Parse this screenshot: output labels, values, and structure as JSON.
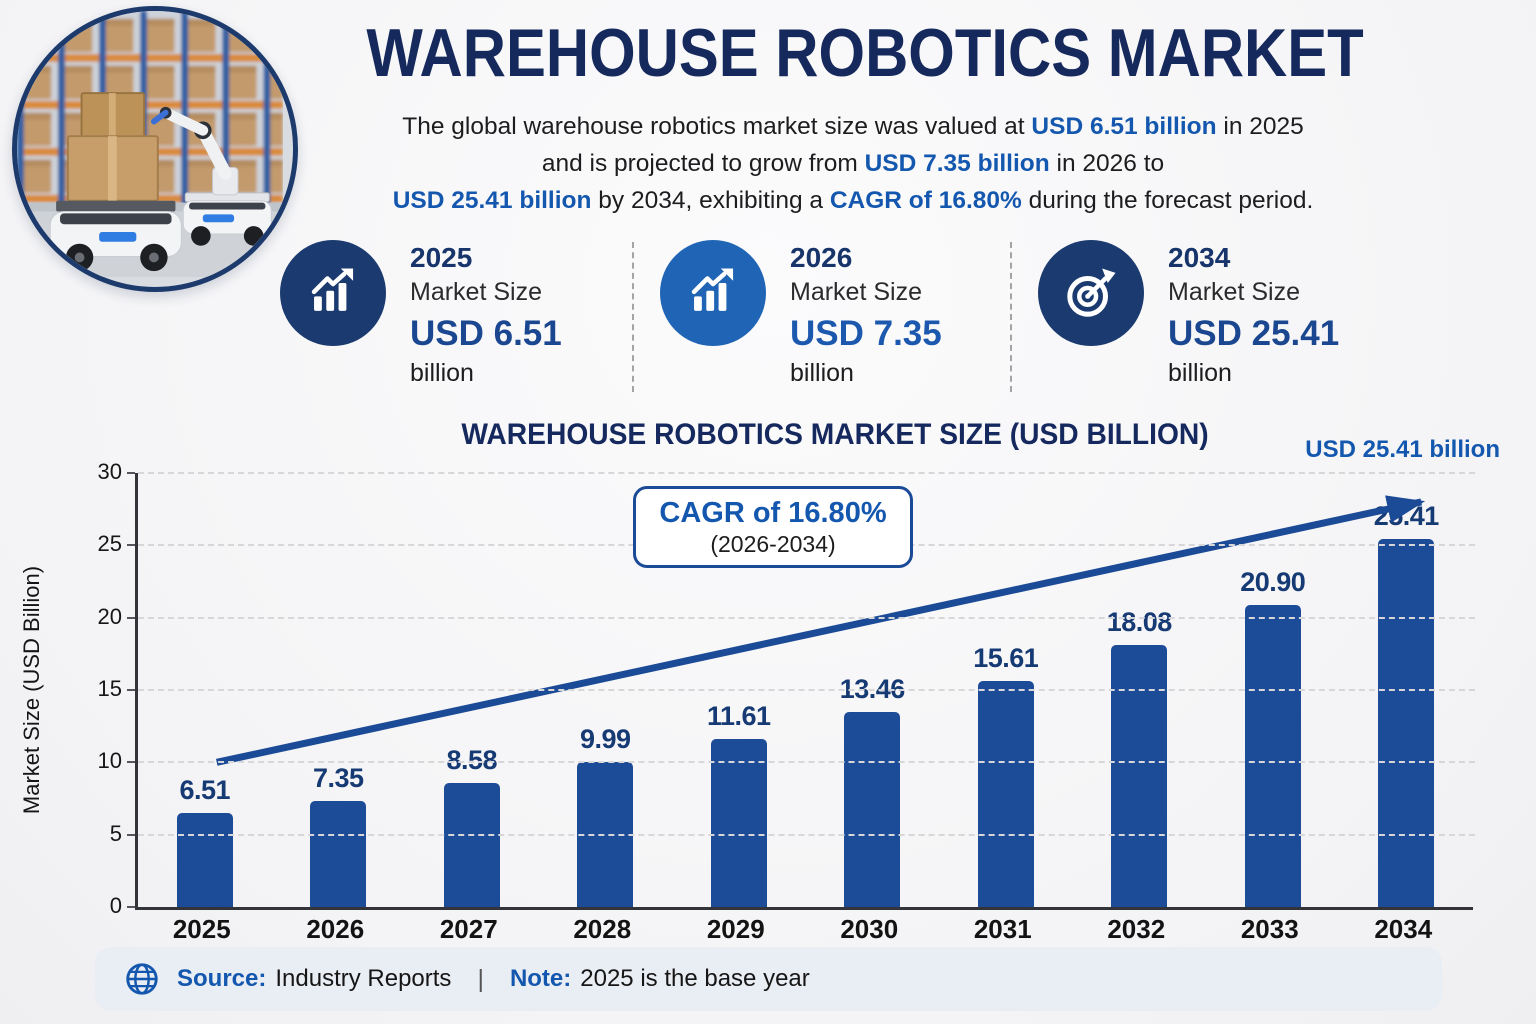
{
  "page_title": "WAREHOUSE ROBOTICS MARKET",
  "hero": {
    "alt": "Warehouse with autonomous mobile robots carrying cardboard boxes and a robotic arm beside racking shelves"
  },
  "intro": {
    "lines": [
      [
        {
          "t": "The global warehouse robotics market size was valued at "
        },
        {
          "t": "USD 6.51 billion",
          "hl": true
        },
        {
          "t": " in 2025"
        }
      ],
      [
        {
          "t": "and is projected to grow from "
        },
        {
          "t": "USD 7.35 billion",
          "hl": true
        },
        {
          "t": " in 2026 to"
        }
      ],
      [
        {
          "t": "USD 25.41 billion",
          "hl": true
        },
        {
          "t": " by 2034, exhibiting a "
        },
        {
          "t": "CAGR of 16.80%",
          "hl": true
        },
        {
          "t": " during the forecast period."
        }
      ]
    ]
  },
  "stats": [
    {
      "year": "2025",
      "label": "Market Size",
      "value": "USD 6.51",
      "unit": "billion",
      "icon": "growth-chart-icon",
      "circle_color": "#1b3b70",
      "value_color": "#1a478f"
    },
    {
      "year": "2026",
      "label": "Market Size",
      "value": "USD 7.35",
      "unit": "billion",
      "icon": "growth-chart-icon",
      "circle_color": "#2065b5",
      "value_color": "#1c58ae"
    },
    {
      "year": "2034",
      "label": "Market Size",
      "value": "USD 25.41",
      "unit": "billion",
      "icon": "target-icon",
      "circle_color": "#1b3b70",
      "value_color": "#1a478f"
    }
  ],
  "chart_data": {
    "type": "bar",
    "title": "WAREHOUSE ROBOTICS MARKET SIZE (USD BILLION)",
    "categories": [
      "2025",
      "2026",
      "2027",
      "2028",
      "2029",
      "2030",
      "2031",
      "2032",
      "2033",
      "2034"
    ],
    "values": [
      6.51,
      7.35,
      8.58,
      9.99,
      11.61,
      13.46,
      15.61,
      18.08,
      20.9,
      25.41
    ],
    "xlabel": "",
    "ylabel": "Market Size (USD Billion)",
    "ylim": [
      0,
      30
    ],
    "yticks": [
      0,
      5,
      10,
      15,
      20,
      25,
      30
    ],
    "grid": "horizontal-dashed",
    "legend": "none",
    "colors": {
      "bar": "#1c4b97",
      "trend": "#1b4a96",
      "grid": "#d7d7da",
      "value_label": "#163a73"
    },
    "annotations": {
      "cagr_line1": "CAGR of 16.80%",
      "cagr_line2": "(2026-2034)",
      "end_label": "USD 25.41 billion",
      "trend_arrow": {
        "from_index": 0,
        "from_value": 10.0,
        "to_index": 9,
        "to_value": 28.0
      }
    }
  },
  "footer": {
    "source_label": "Source:",
    "source_value": "Industry Reports",
    "divider": "|",
    "note_label": "Note:",
    "note_value": "2025 is the base year"
  }
}
